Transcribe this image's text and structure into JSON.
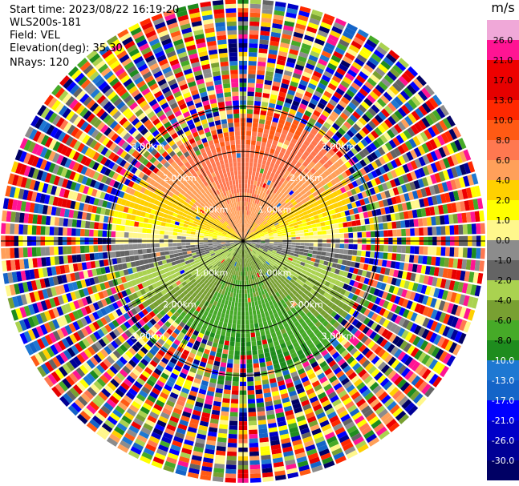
{
  "info": {
    "start_time": "Start time: 2023/08/22 16:19:20",
    "instrument": "WLS200s-181",
    "field": "Field: VEL",
    "elevation": "Elevation(deg): 35.30",
    "nrays": "NRays: 120"
  },
  "chart_data": {
    "type": "heatmap",
    "projection": "polar-ppi",
    "field": "VEL",
    "units": "m/s",
    "nrays": 120,
    "ring_labels": [
      "1.00km",
      "2.00km",
      "3.00km"
    ],
    "rings_km": [
      1,
      2,
      3
    ],
    "outer_range_km": 5.4,
    "colorbar": {
      "title": "m/s",
      "ticks": [
        "26.0",
        "21.0",
        "17.0",
        "13.0",
        "10.0",
        "8.0",
        "6.0",
        "4.0",
        "2.0",
        "1.0",
        "0.0",
        "-1.0",
        "-2.0",
        "-4.0",
        "-6.0",
        "-8.0",
        "-10.0",
        "-13.0",
        "-17.0",
        "-21.0",
        "-26.0",
        "-30.0"
      ],
      "colors": [
        "#f0a8d8",
        "#ff1493",
        "#ee0000",
        "#e60000",
        "#ff2800",
        "#ff5a14",
        "#ff7850",
        "#ffa05a",
        "#ffd000",
        "#ffff00",
        "#fff78c",
        "#8c8c8c",
        "#646464",
        "#aad250",
        "#78a032",
        "#46aa28",
        "#1e8c1e",
        "#1e78d2",
        "#1464c8",
        "#0000ff",
        "#0000c8",
        "#000096",
        "#000064"
      ]
    }
  }
}
